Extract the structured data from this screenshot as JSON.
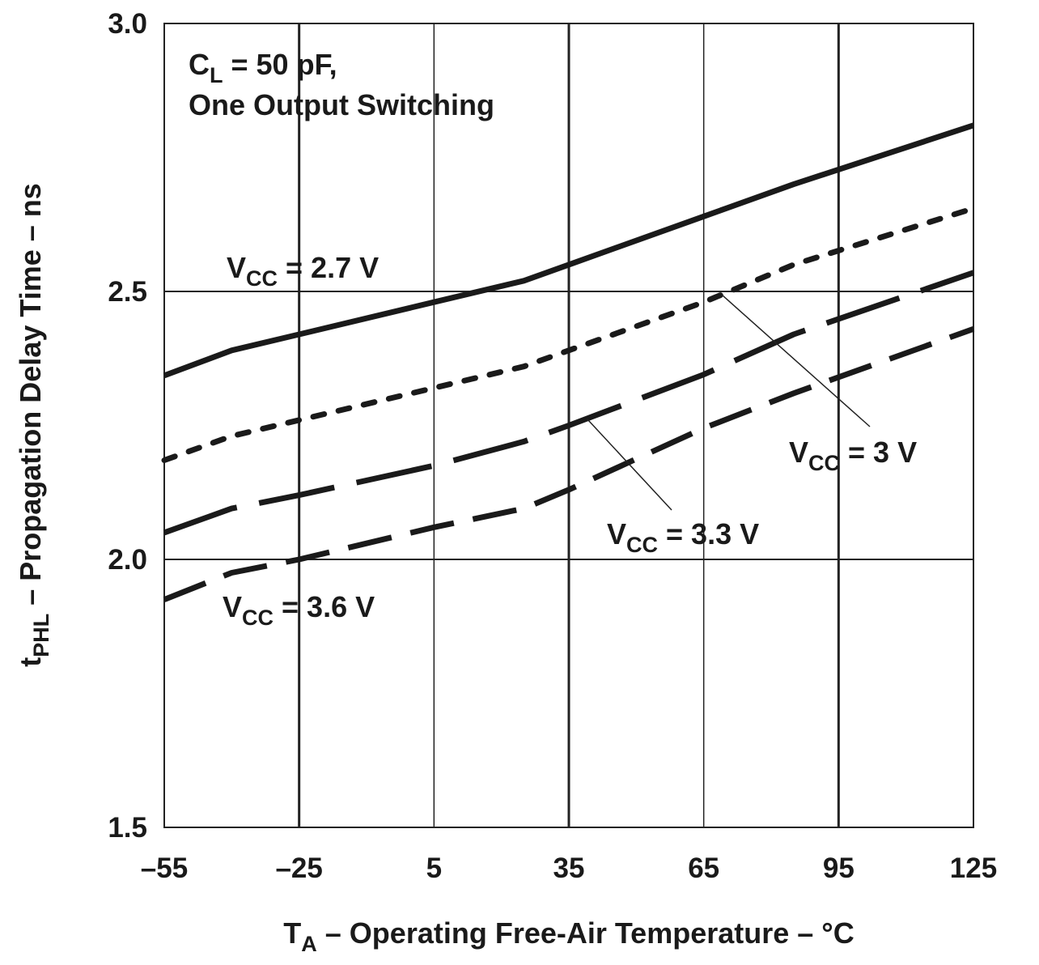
{
  "chart_data": {
    "type": "line",
    "title": "",
    "xlabel": {
      "main": "T",
      "sub": "A",
      "rest": " – Operating Free-Air Temperature – °C"
    },
    "ylabel": {
      "main": "t",
      "sub": "PHL",
      "rest": " – Propagation Delay Time – ns"
    },
    "xlim": [
      -55,
      125
    ],
    "ylim": [
      1.5,
      3.0
    ],
    "x_ticks": [
      -55,
      -25,
      5,
      35,
      65,
      95,
      125
    ],
    "x_tick_labels": [
      "–55",
      "–25",
      "5",
      "35",
      "65",
      "95",
      "125"
    ],
    "y_ticks": [
      1.5,
      2.0,
      2.5,
      3.0
    ],
    "y_tick_labels": [
      "1.5",
      "2.0",
      "2.5",
      "3.0"
    ],
    "conditions": {
      "line1": {
        "main": "C",
        "sub": "L",
        "rest": " = 50 pF,"
      },
      "line2": "One Output Switching"
    },
    "series": [
      {
        "name": "VCC = 2.7 V",
        "label": {
          "main": "V",
          "sub": "CC",
          "rest": " = 2.7 V"
        },
        "style": "solid",
        "x": [
          -55,
          -40,
          -25,
          5,
          25,
          35,
          65,
          85,
          125
        ],
        "y": [
          2.343,
          2.39,
          2.42,
          2.48,
          2.52,
          2.55,
          2.64,
          2.7,
          2.81
        ]
      },
      {
        "name": "VCC = 3 V",
        "label": {
          "main": "V",
          "sub": "CC",
          "rest": " = 3 V"
        },
        "style": "dotted",
        "x": [
          -55,
          -40,
          -25,
          5,
          25,
          35,
          65,
          85,
          125
        ],
        "y": [
          2.185,
          2.23,
          2.26,
          2.32,
          2.36,
          2.39,
          2.48,
          2.55,
          2.655
        ]
      },
      {
        "name": "VCC = 3.3 V",
        "label": {
          "main": "V",
          "sub": "CC",
          "rest": " = 3.3 V"
        },
        "style": "long-dash",
        "x": [
          -55,
          -40,
          -25,
          5,
          25,
          35,
          65,
          85,
          125
        ],
        "y": [
          2.05,
          2.095,
          2.12,
          2.175,
          2.22,
          2.25,
          2.345,
          2.42,
          2.535
        ]
      },
      {
        "name": "VCC = 3.6 V",
        "label": {
          "main": "V",
          "sub": "CC",
          "rest": " = 3.6 V"
        },
        "style": "dash",
        "x": [
          -55,
          -40,
          -25,
          5,
          25,
          35,
          65,
          85,
          125
        ],
        "y": [
          1.925,
          1.975,
          2.0,
          2.06,
          2.095,
          2.13,
          2.245,
          2.31,
          2.43
        ]
      }
    ]
  }
}
